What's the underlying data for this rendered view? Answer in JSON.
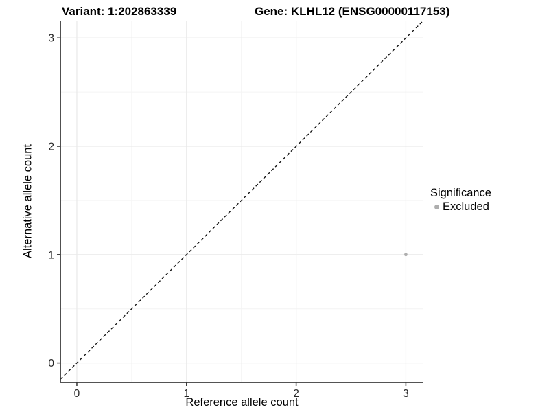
{
  "header": {
    "variant_title": "Variant: 1:202863339",
    "gene_title": "Gene: KLHL12 (ENSG00000117153)"
  },
  "chart_data": {
    "type": "scatter",
    "xlabel": "Reference allele count",
    "ylabel": "Alternative allele count",
    "xlim": [
      -0.15,
      3.16
    ],
    "ylim": [
      -0.18,
      3.16
    ],
    "xticks": [
      0,
      1,
      2,
      3
    ],
    "yticks": [
      0,
      1,
      2,
      3
    ],
    "minor_xticks": [
      0.5,
      1.5,
      2.5
    ],
    "minor_yticks": [
      0.5,
      1.5,
      2.5
    ],
    "grid": "major+minor",
    "identity_line": {
      "style": "dashed",
      "equation": "y = x"
    },
    "series": [
      {
        "name": "Excluded",
        "color": "#aeaeae",
        "point_radius": 2.4,
        "points": [
          {
            "x": 3,
            "y": 1
          }
        ]
      }
    ],
    "legend": {
      "title": "Significance",
      "position": "right",
      "items": [
        {
          "label": "Excluded",
          "color": "#aeaeae"
        }
      ]
    },
    "colors": {
      "grid_major": "#e9e9e9",
      "grid_minor": "#f4f4f4",
      "axis_line": "#3c3c3c",
      "tick_mark": "#333333",
      "tick_label": "#262626",
      "dashed_line": "#111111",
      "background": "#ffffff"
    }
  }
}
